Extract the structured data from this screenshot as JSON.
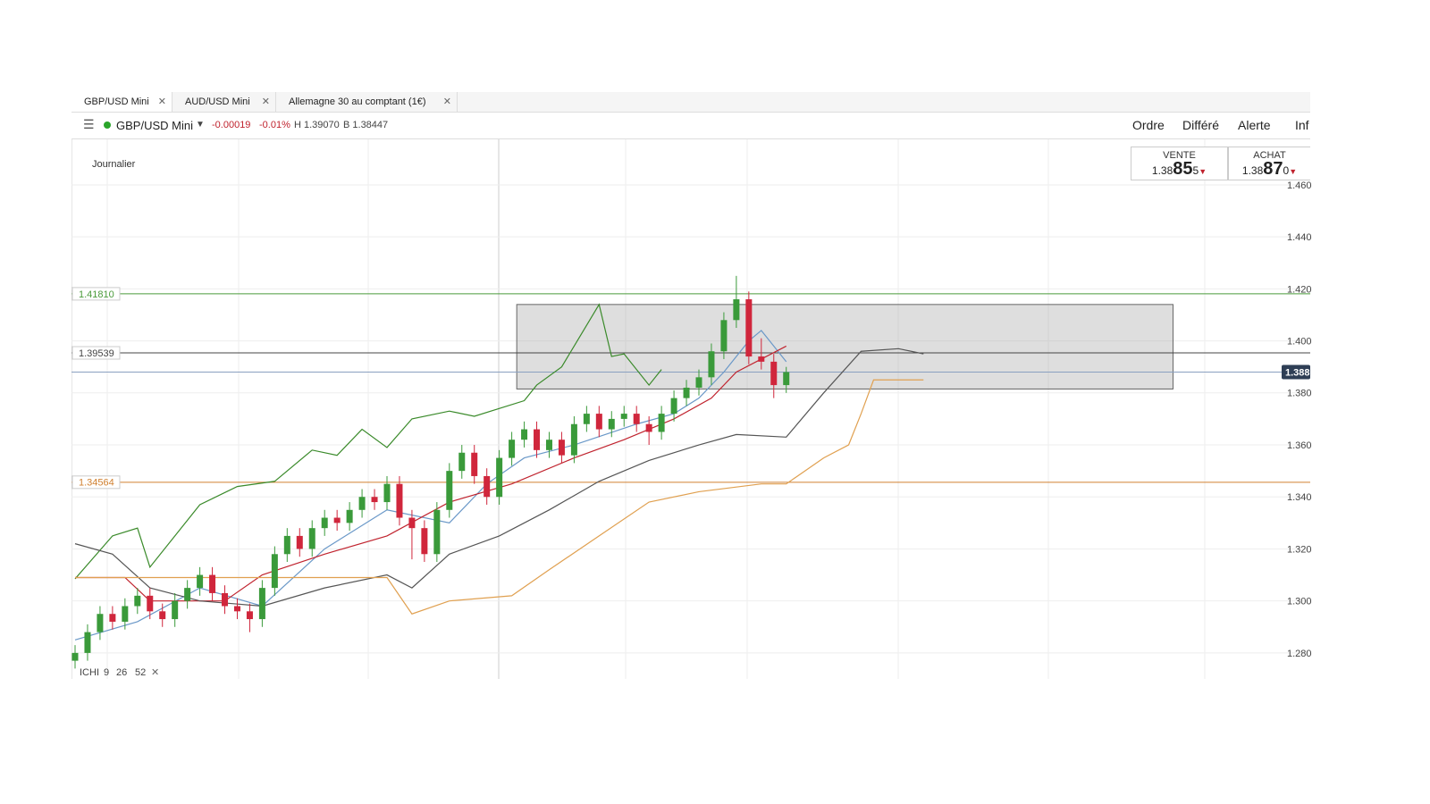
{
  "tabs": [
    "GBP/USD Mini",
    "AUD/USD Mini",
    "Allemagne 30 au comptant (1€)"
  ],
  "instrument": {
    "name": "GBP/USD Mini",
    "change": "-0.00019",
    "change_pct": "-0.01%",
    "high": "H 1.39070",
    "low": "B 1.38447"
  },
  "menu": [
    "Ordre",
    "Différé",
    "Alerte",
    "Inf"
  ],
  "quotes": {
    "sell": {
      "label": "VENTE",
      "prefix": "1.38",
      "pips": "85",
      "fraction": "5"
    },
    "buy": {
      "label": "ACHAT",
      "prefix": "1.38",
      "pips": "87",
      "fraction": "0"
    }
  },
  "chart_data": {
    "type": "candlestick",
    "title": "Journalier",
    "open": [
      1.277,
      1.28,
      1.288,
      1.295,
      1.292,
      1.298,
      1.302,
      1.296,
      1.293,
      1.3,
      1.305,
      1.31,
      1.303,
      1.298,
      1.296,
      1.293,
      1.305,
      1.318,
      1.325,
      1.32,
      1.328,
      1.332,
      1.33,
      1.335,
      1.34,
      1.338,
      1.345,
      1.332,
      1.328,
      1.318,
      1.335,
      1.35,
      1.357,
      1.348,
      1.34,
      1.355,
      1.362,
      1.366,
      1.358,
      1.362,
      1.356,
      1.368,
      1.372,
      1.366,
      1.37,
      1.372,
      1.368,
      1.365,
      1.372,
      1.378,
      1.382,
      1.386,
      1.396,
      1.408,
      1.416,
      1.394,
      1.392,
      1.383
    ],
    "high": [
      1.283,
      1.291,
      1.298,
      1.298,
      1.301,
      1.305,
      1.305,
      1.299,
      1.303,
      1.308,
      1.313,
      1.313,
      1.306,
      1.301,
      1.299,
      1.308,
      1.321,
      1.328,
      1.328,
      1.331,
      1.335,
      1.335,
      1.338,
      1.343,
      1.343,
      1.348,
      1.348,
      1.335,
      1.331,
      1.338,
      1.353,
      1.36,
      1.36,
      1.351,
      1.358,
      1.365,
      1.369,
      1.369,
      1.365,
      1.365,
      1.371,
      1.375,
      1.375,
      1.373,
      1.375,
      1.375,
      1.371,
      1.375,
      1.381,
      1.385,
      1.389,
      1.399,
      1.411,
      1.425,
      1.419,
      1.401,
      1.395,
      1.39
    ],
    "low": [
      1.274,
      1.277,
      1.285,
      1.289,
      1.289,
      1.295,
      1.293,
      1.29,
      1.29,
      1.297,
      1.302,
      1.3,
      1.295,
      1.293,
      1.288,
      1.29,
      1.302,
      1.315,
      1.317,
      1.317,
      1.325,
      1.327,
      1.327,
      1.332,
      1.335,
      1.335,
      1.329,
      1.316,
      1.315,
      1.315,
      1.332,
      1.347,
      1.345,
      1.337,
      1.337,
      1.352,
      1.359,
      1.355,
      1.355,
      1.353,
      1.353,
      1.365,
      1.363,
      1.363,
      1.367,
      1.365,
      1.36,
      1.362,
      1.369,
      1.375,
      1.379,
      1.383,
      1.393,
      1.405,
      1.391,
      1.389,
      1.378,
      1.38
    ],
    "close": [
      1.28,
      1.288,
      1.295,
      1.292,
      1.298,
      1.302,
      1.296,
      1.293,
      1.3,
      1.305,
      1.31,
      1.303,
      1.298,
      1.296,
      1.293,
      1.305,
      1.318,
      1.325,
      1.32,
      1.328,
      1.332,
      1.33,
      1.335,
      1.34,
      1.338,
      1.345,
      1.332,
      1.328,
      1.318,
      1.335,
      1.35,
      1.357,
      1.348,
      1.34,
      1.355,
      1.362,
      1.366,
      1.358,
      1.362,
      1.356,
      1.368,
      1.372,
      1.366,
      1.37,
      1.372,
      1.368,
      1.365,
      1.372,
      1.378,
      1.382,
      1.386,
      1.396,
      1.408,
      1.416,
      1.394,
      1.392,
      1.383,
      1.388
    ],
    "up_color": "#3a9a3a",
    "down_color": "#d0263c",
    "lines": [
      {
        "color": "#3a8a2a",
        "x": [
          0,
          3,
          5,
          6,
          10,
          13,
          16,
          19,
          21,
          23,
          25,
          27,
          30,
          32,
          36,
          37,
          39,
          42,
          43,
          44,
          46,
          47
        ],
        "values": [
          1.3085,
          1.325,
          1.328,
          1.313,
          1.337,
          1.344,
          1.346,
          1.358,
          1.356,
          1.366,
          1.359,
          1.37,
          1.373,
          1.371,
          1.377,
          1.383,
          1.39,
          1.414,
          1.394,
          1.395,
          1.383,
          1.389
        ]
      },
      {
        "color": "#6a98c8",
        "x": [
          0,
          5,
          10,
          15,
          20,
          25,
          30,
          33,
          36,
          40,
          45,
          48,
          50,
          52,
          54,
          55,
          57
        ],
        "values": [
          1.285,
          1.292,
          1.305,
          1.298,
          1.32,
          1.335,
          1.33,
          1.345,
          1.355,
          1.36,
          1.368,
          1.372,
          1.378,
          1.388,
          1.4,
          1.404,
          1.392
        ]
      },
      {
        "color": "#c0232e",
        "x": [
          0,
          4,
          6,
          12,
          15,
          20,
          25,
          30,
          35,
          40,
          44,
          48,
          51,
          53,
          57
        ],
        "values": [
          1.309,
          1.309,
          1.3,
          1.3,
          1.31,
          1.318,
          1.325,
          1.338,
          1.345,
          1.355,
          1.362,
          1.37,
          1.378,
          1.388,
          1.398
        ]
      },
      {
        "color": "#555555",
        "x": [
          0,
          3,
          6,
          10,
          15,
          20,
          25,
          27,
          30,
          34,
          38,
          42,
          46,
          50,
          53,
          57,
          60,
          63,
          66,
          68
        ],
        "values": [
          1.322,
          1.318,
          1.305,
          1.3,
          1.298,
          1.305,
          1.31,
          1.305,
          1.318,
          1.325,
          1.335,
          1.346,
          1.354,
          1.36,
          1.364,
          1.363,
          1.38,
          1.396,
          1.397,
          1.395
        ]
      },
      {
        "color": "#e0a050",
        "x": [
          0,
          10,
          25,
          27,
          30,
          35,
          38,
          42,
          46,
          50,
          55,
          57,
          60,
          62,
          63,
          64,
          66,
          68
        ],
        "values": [
          1.309,
          1.309,
          1.309,
          1.295,
          1.3,
          1.302,
          1.312,
          1.325,
          1.338,
          1.342,
          1.345,
          1.345,
          1.355,
          1.36,
          1.372,
          1.385,
          1.385,
          1.385
        ]
      }
    ],
    "levels": [
      {
        "value": 1.4181,
        "label": "1.41810",
        "color": "#4a9a3a"
      },
      {
        "value": 1.39539,
        "label": "1.39539",
        "color": "#444444"
      },
      {
        "value": 1.34564,
        "label": "1.34564",
        "color": "#d08030"
      }
    ],
    "current_price": {
      "value": 1.388,
      "label": "1.388"
    },
    "zone": {
      "x": [
        35.4,
        88
      ],
      "y": [
        1.3815,
        1.414
      ]
    },
    "ylim": [
      1.27,
      1.4775
    ],
    "yticks": [
      {
        "value": 1.28,
        "label": "1.280"
      },
      {
        "value": 1.3,
        "label": "1.300"
      },
      {
        "value": 1.32,
        "label": "1.320"
      },
      {
        "value": 1.34,
        "label": "1.340"
      },
      {
        "value": 1.36,
        "label": "1.360"
      },
      {
        "value": 1.38,
        "label": "1.380"
      },
      {
        "value": 1.4,
        "label": "1.400"
      },
      {
        "value": 1.42,
        "label": "1.420"
      },
      {
        "value": 1.44,
        "label": "1.440"
      },
      {
        "value": 1.46,
        "label": "1.460"
      }
    ],
    "grid": true,
    "indicator": {
      "name": "ICHI",
      "params": [
        9,
        26,
        52
      ]
    }
  }
}
